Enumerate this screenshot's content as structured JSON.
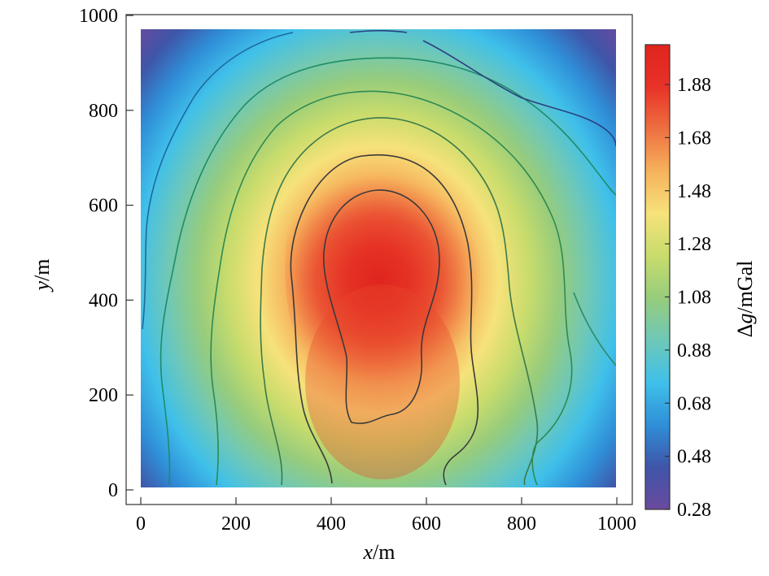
{
  "chart_data": {
    "type": "heatmap",
    "subtype": "filled-contour",
    "xlabel": {
      "var": "x",
      "unit": "/m"
    },
    "ylabel": {
      "var": "y",
      "unit": "/m"
    },
    "xlim": [
      0,
      1000
    ],
    "ylim": [
      0,
      1000
    ],
    "x_ticks": [
      "0",
      "200",
      "400",
      "600",
      "800",
      "1000"
    ],
    "y_ticks": [
      "0",
      "200",
      "400",
      "600",
      "800",
      "1000"
    ],
    "data_extent": {
      "x": [
        30,
        1000
      ],
      "y": [
        10,
        970
      ]
    },
    "grid": false,
    "colorbar": {
      "label": {
        "prefix": "Δ",
        "var": "g",
        "unit": "/mGal"
      },
      "range": [
        0.28,
        2.03
      ],
      "ticks": [
        "0.28",
        "0.48",
        "0.68",
        "0.88",
        "1.08",
        "1.28",
        "1.48",
        "1.68",
        "1.88"
      ],
      "colormap": [
        "#6a4a9e",
        "#3f55a8",
        "#2f8fd8",
        "#3fc0ea",
        "#6ec8b8",
        "#97cc7c",
        "#c8dc6c",
        "#f6e27a",
        "#f6b25c",
        "#ee7040",
        "#e83228",
        "#e0241e"
      ]
    },
    "peak": {
      "x": 480,
      "y": 460,
      "value": 2.0
    },
    "contour_levels": [
      0.48,
      0.68,
      0.88,
      1.08,
      1.28,
      1.48,
      1.68,
      1.88
    ]
  }
}
